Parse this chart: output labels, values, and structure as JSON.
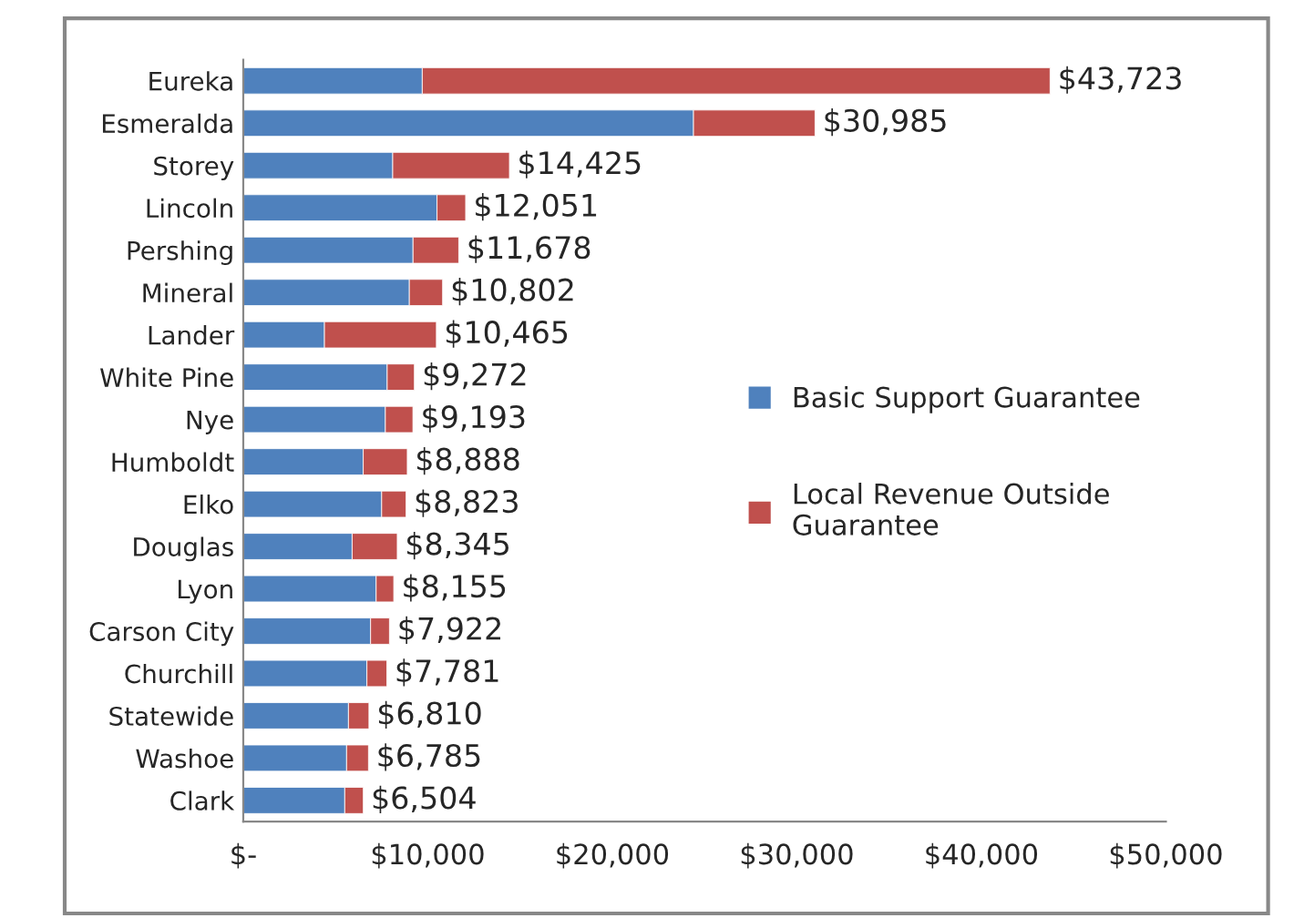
{
  "chart_data": {
    "type": "bar",
    "orientation": "horizontal",
    "stacked": true,
    "categories": [
      "Eureka",
      "Esmeralda",
      "Storey",
      "Lincoln",
      "Pershing",
      "Mineral",
      "Lander",
      "White Pine",
      "Nye",
      "Humboldt",
      "Elko",
      "Douglas",
      "Lyon",
      "Carson City",
      "Churchill",
      "Statewide",
      "Washoe",
      "Clark"
    ],
    "series": [
      {
        "name": "Basic Support Guarantee",
        "color": "#4f81bd",
        "values": [
          9700,
          24400,
          8100,
          10500,
          9200,
          9000,
          4400,
          7800,
          7700,
          6500,
          7500,
          5900,
          7200,
          6900,
          6700,
          5700,
          5600,
          5500
        ]
      },
      {
        "name": "Local Revenue Outside\nGuarantee",
        "color": "#c0504d",
        "values": [
          34023,
          6585,
          6325,
          1551,
          2478,
          1802,
          6065,
          1472,
          1493,
          2388,
          1323,
          2445,
          955,
          1022,
          1081,
          1110,
          1185,
          1004
        ]
      }
    ],
    "totals": [
      "$43,723",
      "$30,985",
      "$14,425",
      "$12,051",
      "$11,678",
      "$10,802",
      "$10,465",
      "$9,272",
      "$9,193",
      "$8,888",
      "$8,823",
      "$8,345",
      "$8,155",
      "$7,922",
      "$7,781",
      "$6,810",
      "$6,785",
      "$6,504"
    ],
    "xlim": [
      0,
      50000
    ],
    "xticks": [
      {
        "value": 0,
        "label": "$-"
      },
      {
        "value": 10000,
        "label": "$10,000"
      },
      {
        "value": 20000,
        "label": "$20,000"
      },
      {
        "value": 30000,
        "label": "$30,000"
      },
      {
        "value": 40000,
        "label": "$40,000"
      },
      {
        "value": 50000,
        "label": "$50,000"
      }
    ],
    "legend": "right",
    "grid": false
  }
}
